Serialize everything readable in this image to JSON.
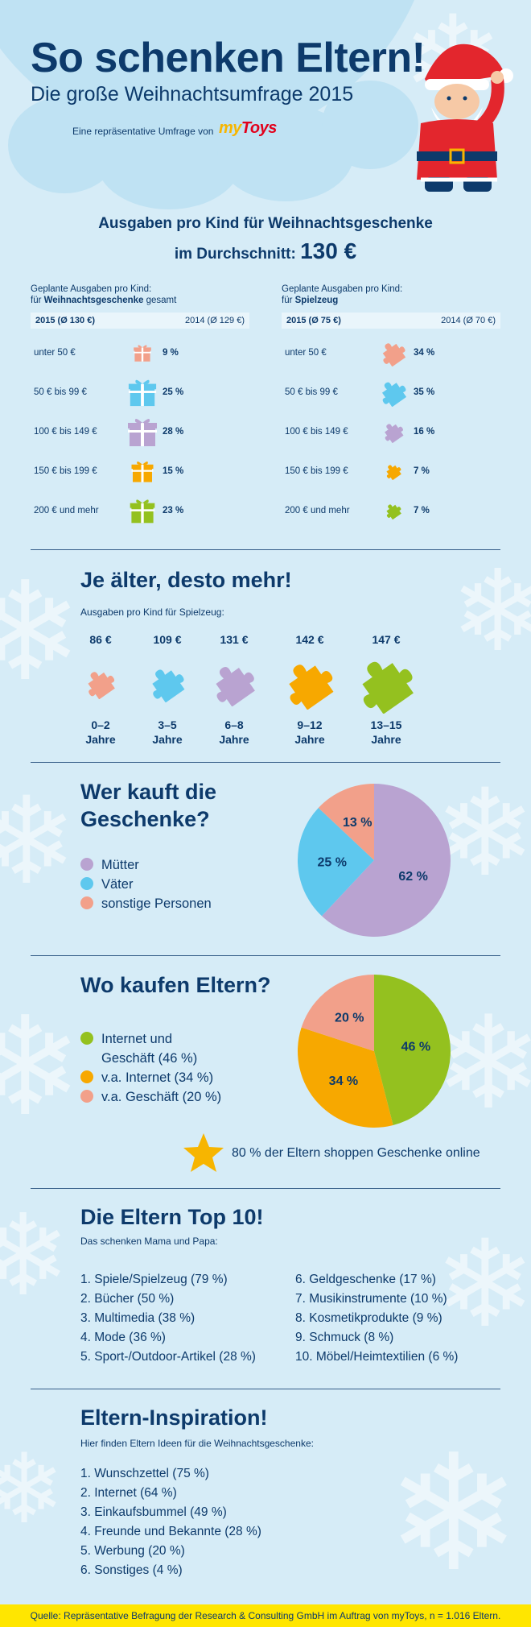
{
  "header": {
    "title": "So schenken Eltern!",
    "subtitle": "Die große Weihnachtsumfrage 2015",
    "survey_text": "Eine repräsentative Umfrage von",
    "logo_my": "my",
    "logo_toys": "Toys"
  },
  "spending": {
    "headline": "Ausgaben pro Kind für Weihnachtsgeschenke",
    "avg_label": "im Durchschnitt:",
    "avg_value": "130 €",
    "gifts": {
      "head_line1": "Geplante Ausgaben pro Kind:",
      "head_prefix": "für ",
      "head_bold": "Weihnachtsgeschenke",
      "head_suffix": " gesamt",
      "year_current": "2015 (Ø 130 €)",
      "year_prev": "2014 (Ø 129 €)",
      "rows": [
        {
          "label": "unter 50 €",
          "percent": "9 %",
          "color": "#f2a08a"
        },
        {
          "label": "50 € bis 99 €",
          "percent": "25 %",
          "color": "#5ec8ee"
        },
        {
          "label": "100 € bis 149 €",
          "percent": "28 %",
          "color": "#b9a3d1"
        },
        {
          "label": "150 € bis 199 €",
          "percent": "15 %",
          "color": "#f7a800"
        },
        {
          "label": "200 € und mehr",
          "percent": "23 %",
          "color": "#94c11f"
        }
      ]
    },
    "toys": {
      "head_line1": "Geplante Ausgaben pro Kind:",
      "head_prefix": "für ",
      "head_bold": "Spielzeug",
      "year_current": "2015 (Ø 75 €)",
      "year_prev": "2014 (Ø 70 €)",
      "rows": [
        {
          "label": "unter 50 €",
          "percent": "34 %",
          "color": "#f2a08a"
        },
        {
          "label": "50 € bis 99 €",
          "percent": "35 %",
          "color": "#5ec8ee"
        },
        {
          "label": "100 € bis 149 €",
          "percent": "16 %",
          "color": "#b9a3d1"
        },
        {
          "label": "150 € bis 199 €",
          "percent": "7 %",
          "color": "#f7a800"
        },
        {
          "label": "200 € und mehr",
          "percent": "7 %",
          "color": "#94c11f"
        }
      ]
    }
  },
  "age": {
    "title": "Je älter, desto mehr!",
    "caption": "Ausgaben pro Kind für Spielzeug:",
    "groups": [
      {
        "amount": "86 €",
        "line1": "0–2",
        "line2": "Jahre",
        "color": "#f2a08a"
      },
      {
        "amount": "109 €",
        "line1": "3–5",
        "line2": "Jahre",
        "color": "#5ec8ee"
      },
      {
        "amount": "131 €",
        "line1": "6–8",
        "line2": "Jahre",
        "color": "#b9a3d1"
      },
      {
        "amount": "142 €",
        "line1": "9–12",
        "line2": "Jahre",
        "color": "#f7a800"
      },
      {
        "amount": "147 €",
        "line1": "13–15",
        "line2": "Jahre",
        "color": "#94c11f"
      }
    ]
  },
  "buyers": {
    "title_line1": "Wer kauft die",
    "title_line2": "Geschenke?",
    "legend": [
      {
        "label": "Mütter",
        "color": "#b9a3d1"
      },
      {
        "label": "Väter",
        "color": "#5ec8ee"
      },
      {
        "label": "sonstige Personen",
        "color": "#f2a08a"
      }
    ],
    "slices": [
      {
        "value": 62,
        "label": "62 %",
        "color": "#b9a3d1"
      },
      {
        "value": 25,
        "label": "25 %",
        "color": "#5ec8ee"
      },
      {
        "value": 13,
        "label": "13 %",
        "color": "#f2a08a"
      }
    ]
  },
  "shopping": {
    "title": "Wo kaufen Eltern?",
    "legend": [
      {
        "label": "Internet und",
        "label2": "Geschäft (46 %)",
        "color": "#94c11f"
      },
      {
        "label": "v.a. Internet (34 %)",
        "color": "#f7a800"
      },
      {
        "label": "v.a. Geschäft (20 %)",
        "color": "#f2a08a"
      }
    ],
    "slices": [
      {
        "value": 46,
        "label": "46 %",
        "color": "#94c11f"
      },
      {
        "value": 34,
        "label": "34 %",
        "color": "#f7a800"
      },
      {
        "value": 20,
        "label": "20 %",
        "color": "#f2a08a"
      }
    ],
    "star_text": "80 % der Eltern shoppen Geschenke online"
  },
  "top10": {
    "title": "Die Eltern Top 10!",
    "caption": "Das schenken Mama und Papa:",
    "left": [
      "1. Spiele/Spielzeug (79 %)",
      "2. Bücher (50 %)",
      "3. Multimedia (38 %)",
      "4. Mode (36 %)",
      "5. Sport-/Outdoor-Artikel (28 %)"
    ],
    "right": [
      "6. Geldgeschenke (17 %)",
      "7. Musikinstrumente (10 %)",
      "8. Kosmetikprodukte (9 %)",
      "9. Schmuck (8 %)",
      "10. Möbel/Heimtextilien (6 %)"
    ]
  },
  "inspiration": {
    "title": "Eltern-Inspiration!",
    "caption": "Hier finden Eltern Ideen für die Weihnachtsgeschenke:",
    "items": [
      "1. Wunschzettel (75 %)",
      "2. Internet (64 %)",
      "3. Einkaufsbummel (49 %)",
      "4. Freunde und Bekannte (28 %)",
      "5. Werbung (20 %)",
      "6. Sonstiges (4 %)"
    ]
  },
  "footer": {
    "source": "Quelle: Repräsentative Befragung der Research & Consulting GmbH im Auftrag von myToys, n = 1.016 Eltern."
  }
}
